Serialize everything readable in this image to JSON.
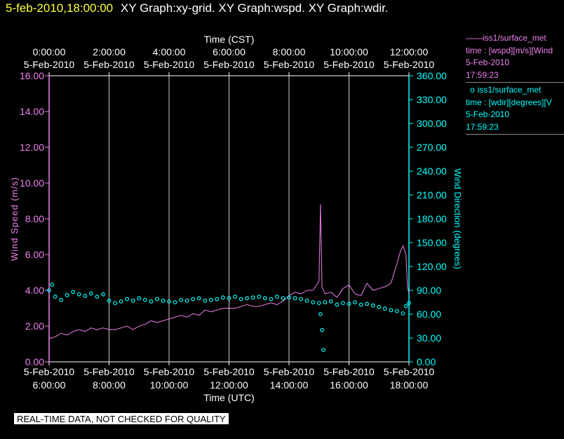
{
  "header": {
    "timestamp": "5-feb-2010,18:00:00",
    "titles": "XY Graph:xy-grid.  XY Graph:wspd.  XY Graph:wdir."
  },
  "legend": [
    {
      "marker": "——",
      "name": "iss1/surface_met",
      "field": "time : [wspd][m/s][Wind",
      "date": "5-Feb-2010",
      "time": "17:59:23",
      "color": "#ee82ee"
    },
    {
      "marker": "o",
      "name": "iss1/surface_met",
      "field": "time : [wdir][degrees][V",
      "date": "5-Feb-2010",
      "time": "17:59:23",
      "color": "#00ffff"
    }
  ],
  "footer": "REAL-TIME DATA, NOT CHECKED FOR QUALITY",
  "chart_data": {
    "type": "line",
    "top_axis_title": "Time (CST)",
    "top_ticks": [
      {
        "time": "0:00:00",
        "date": "5-Feb-2010"
      },
      {
        "time": "2:00:00",
        "date": "5-Feb-2010"
      },
      {
        "time": "4:00:00",
        "date": "5-Feb-2010"
      },
      {
        "time": "6:00:00",
        "date": "5-Feb-2010"
      },
      {
        "time": "8:00:00",
        "date": "5-Feb-2010"
      },
      {
        "time": "10:00:00",
        "date": "5-Feb-2010"
      },
      {
        "time": "12:00:00",
        "date": "5-Feb-2010"
      }
    ],
    "xlabel": "Time (UTC)",
    "bottom_ticks": [
      {
        "date": "5-Feb-2010",
        "time": "6:00:00"
      },
      {
        "date": "5-Feb-2010",
        "time": "8:00:00"
      },
      {
        "date": "5-Feb-2010",
        "time": "10:00:00"
      },
      {
        "date": "5-Feb-2010",
        "time": "12:00:00"
      },
      {
        "date": "5-Feb-2010",
        "time": "14:00:00"
      },
      {
        "date": "5-Feb-2010",
        "time": "16:00:00"
      },
      {
        "date": "5-Feb-2010",
        "time": "18:00:00"
      }
    ],
    "xlim_hours_utc": [
      6.0,
      18.0
    ],
    "y1label": "Wind Speed (m/s)",
    "y1lim": [
      0,
      16
    ],
    "y1_ticks": [
      "0.00",
      "2.00",
      "4.00",
      "6.00",
      "8.00",
      "10.00",
      "12.00",
      "14.00",
      "16.00"
    ],
    "y2label": "Wind Direction (degrees)",
    "y2lim": [
      0,
      360
    ],
    "y2_ticks": [
      "0.00",
      "30.00",
      "60.00",
      "90.00",
      "120.00",
      "150.00",
      "180.00",
      "210.00",
      "240.00",
      "270.00",
      "300.00",
      "330.00",
      "360.00"
    ],
    "grid": "vertical",
    "series": [
      {
        "name": "wspd",
        "color": "#ee82ee",
        "style": "line",
        "x": [
          6.0,
          6.2,
          6.4,
          6.6,
          6.8,
          7.0,
          7.2,
          7.4,
          7.6,
          7.8,
          8.0,
          8.2,
          8.4,
          8.6,
          8.8,
          9.0,
          9.2,
          9.4,
          9.6,
          9.8,
          10.0,
          10.2,
          10.4,
          10.6,
          10.8,
          11.0,
          11.2,
          11.4,
          11.6,
          11.8,
          12.0,
          12.2,
          12.4,
          12.6,
          12.8,
          13.0,
          13.2,
          13.4,
          13.6,
          13.8,
          14.0,
          14.2,
          14.4,
          14.6,
          14.8,
          15.0,
          15.05,
          15.1,
          15.2,
          15.4,
          15.6,
          15.8,
          16.0,
          16.2,
          16.4,
          16.6,
          16.8,
          17.0,
          17.2,
          17.4,
          17.6,
          17.7,
          17.8,
          17.9,
          17.95,
          18.0
        ],
        "values": [
          1.3,
          1.4,
          1.6,
          1.5,
          1.7,
          1.8,
          1.7,
          1.9,
          1.8,
          1.9,
          1.8,
          1.8,
          1.9,
          2.0,
          1.8,
          2.0,
          2.1,
          2.3,
          2.2,
          2.3,
          2.4,
          2.5,
          2.6,
          2.5,
          2.7,
          2.6,
          2.9,
          2.8,
          2.9,
          3.0,
          3.0,
          3.0,
          3.1,
          3.2,
          3.1,
          3.1,
          3.2,
          3.3,
          3.2,
          3.4,
          3.7,
          3.9,
          3.8,
          4.0,
          4.0,
          4.5,
          8.8,
          4.2,
          3.8,
          3.9,
          3.6,
          4.1,
          4.3,
          3.8,
          3.7,
          4.4,
          4.0,
          4.1,
          4.2,
          4.4,
          5.5,
          6.1,
          6.5,
          6.0,
          4.2,
          3.8
        ]
      },
      {
        "name": "wdir",
        "color": "#00ffff",
        "style": "markers",
        "x": [
          6.0,
          6.1,
          6.2,
          6.4,
          6.6,
          6.8,
          7.0,
          7.2,
          7.4,
          7.6,
          7.8,
          8.0,
          8.2,
          8.4,
          8.6,
          8.8,
          9.0,
          9.2,
          9.4,
          9.6,
          9.8,
          10.0,
          10.2,
          10.4,
          10.6,
          10.8,
          11.0,
          11.2,
          11.4,
          11.6,
          11.8,
          12.0,
          12.2,
          12.4,
          12.6,
          12.8,
          13.0,
          13.2,
          13.4,
          13.6,
          13.8,
          14.0,
          14.2,
          14.4,
          14.6,
          14.8,
          15.0,
          15.05,
          15.1,
          15.15,
          15.2,
          15.4,
          15.6,
          15.8,
          16.0,
          16.2,
          16.4,
          16.6,
          16.8,
          17.0,
          17.2,
          17.4,
          17.6,
          17.8,
          17.9,
          18.0
        ],
        "values": [
          90,
          97,
          82,
          78,
          84,
          88,
          85,
          83,
          86,
          82,
          85,
          77,
          74,
          76,
          79,
          77,
          80,
          78,
          76,
          79,
          77,
          76,
          75,
          78,
          77,
          79,
          80,
          77,
          78,
          79,
          81,
          80,
          82,
          79,
          80,
          81,
          82,
          80,
          79,
          82,
          80,
          81,
          80,
          79,
          77,
          75,
          74,
          60,
          40,
          15,
          75,
          76,
          72,
          74,
          73,
          75,
          72,
          73,
          71,
          69,
          67,
          65,
          64,
          61,
          70,
          74
        ]
      }
    ]
  }
}
